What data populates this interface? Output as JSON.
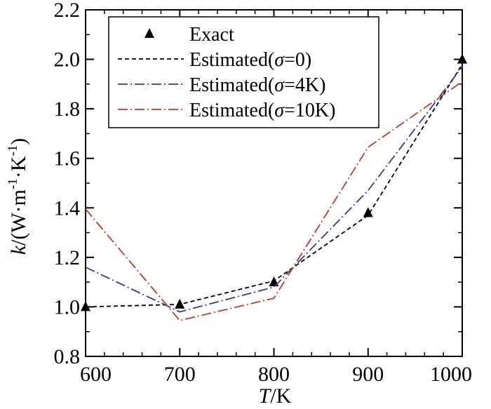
{
  "chart_data": {
    "type": "line",
    "x": [
      600,
      700,
      800,
      900,
      1000
    ],
    "xlim": [
      600,
      1000
    ],
    "ylim": [
      0.8,
      2.2
    ],
    "xticks": [
      "600",
      "700",
      "800",
      "900",
      "1000"
    ],
    "yticks": [
      "0.8",
      "1.0",
      "1.2",
      "1.4",
      "1.6",
      "1.8",
      "2.0",
      "2.2"
    ],
    "xlabel": {
      "italic": "T",
      "rest": "/K"
    },
    "ylabel": {
      "italic": "k",
      "rest": "/(W·m",
      "sup1": "-1",
      "mid": "·K",
      "sup2": "-1",
      "end": ")"
    },
    "legend_position": "top-left",
    "series": [
      {
        "key": "exact",
        "prefix": "Exact",
        "sigma": "",
        "suffix": "",
        "style": "triangle",
        "color": "#000000",
        "values": [
          1.0,
          1.01,
          1.1,
          1.38,
          2.0
        ]
      },
      {
        "key": "s0",
        "prefix": "Estimated(",
        "sigma": "σ",
        "suffix": "=0)",
        "style": "dashed",
        "color": "#000000",
        "values": [
          1.0,
          1.01,
          1.105,
          1.37,
          1.98
        ]
      },
      {
        "key": "s4",
        "prefix": "Estimated(",
        "sigma": "σ",
        "suffix": "=4K)",
        "style": "dashdot",
        "color": "#3a3a8c",
        "values": [
          1.16,
          0.98,
          1.08,
          1.47,
          1.97
        ]
      },
      {
        "key": "s10",
        "prefix": "Estimated(",
        "sigma": "σ",
        "suffix": "=10K)",
        "style": "dashdot",
        "color": "#c0392b",
        "values": [
          1.395,
          0.945,
          1.035,
          1.645,
          1.91
        ]
      }
    ]
  }
}
